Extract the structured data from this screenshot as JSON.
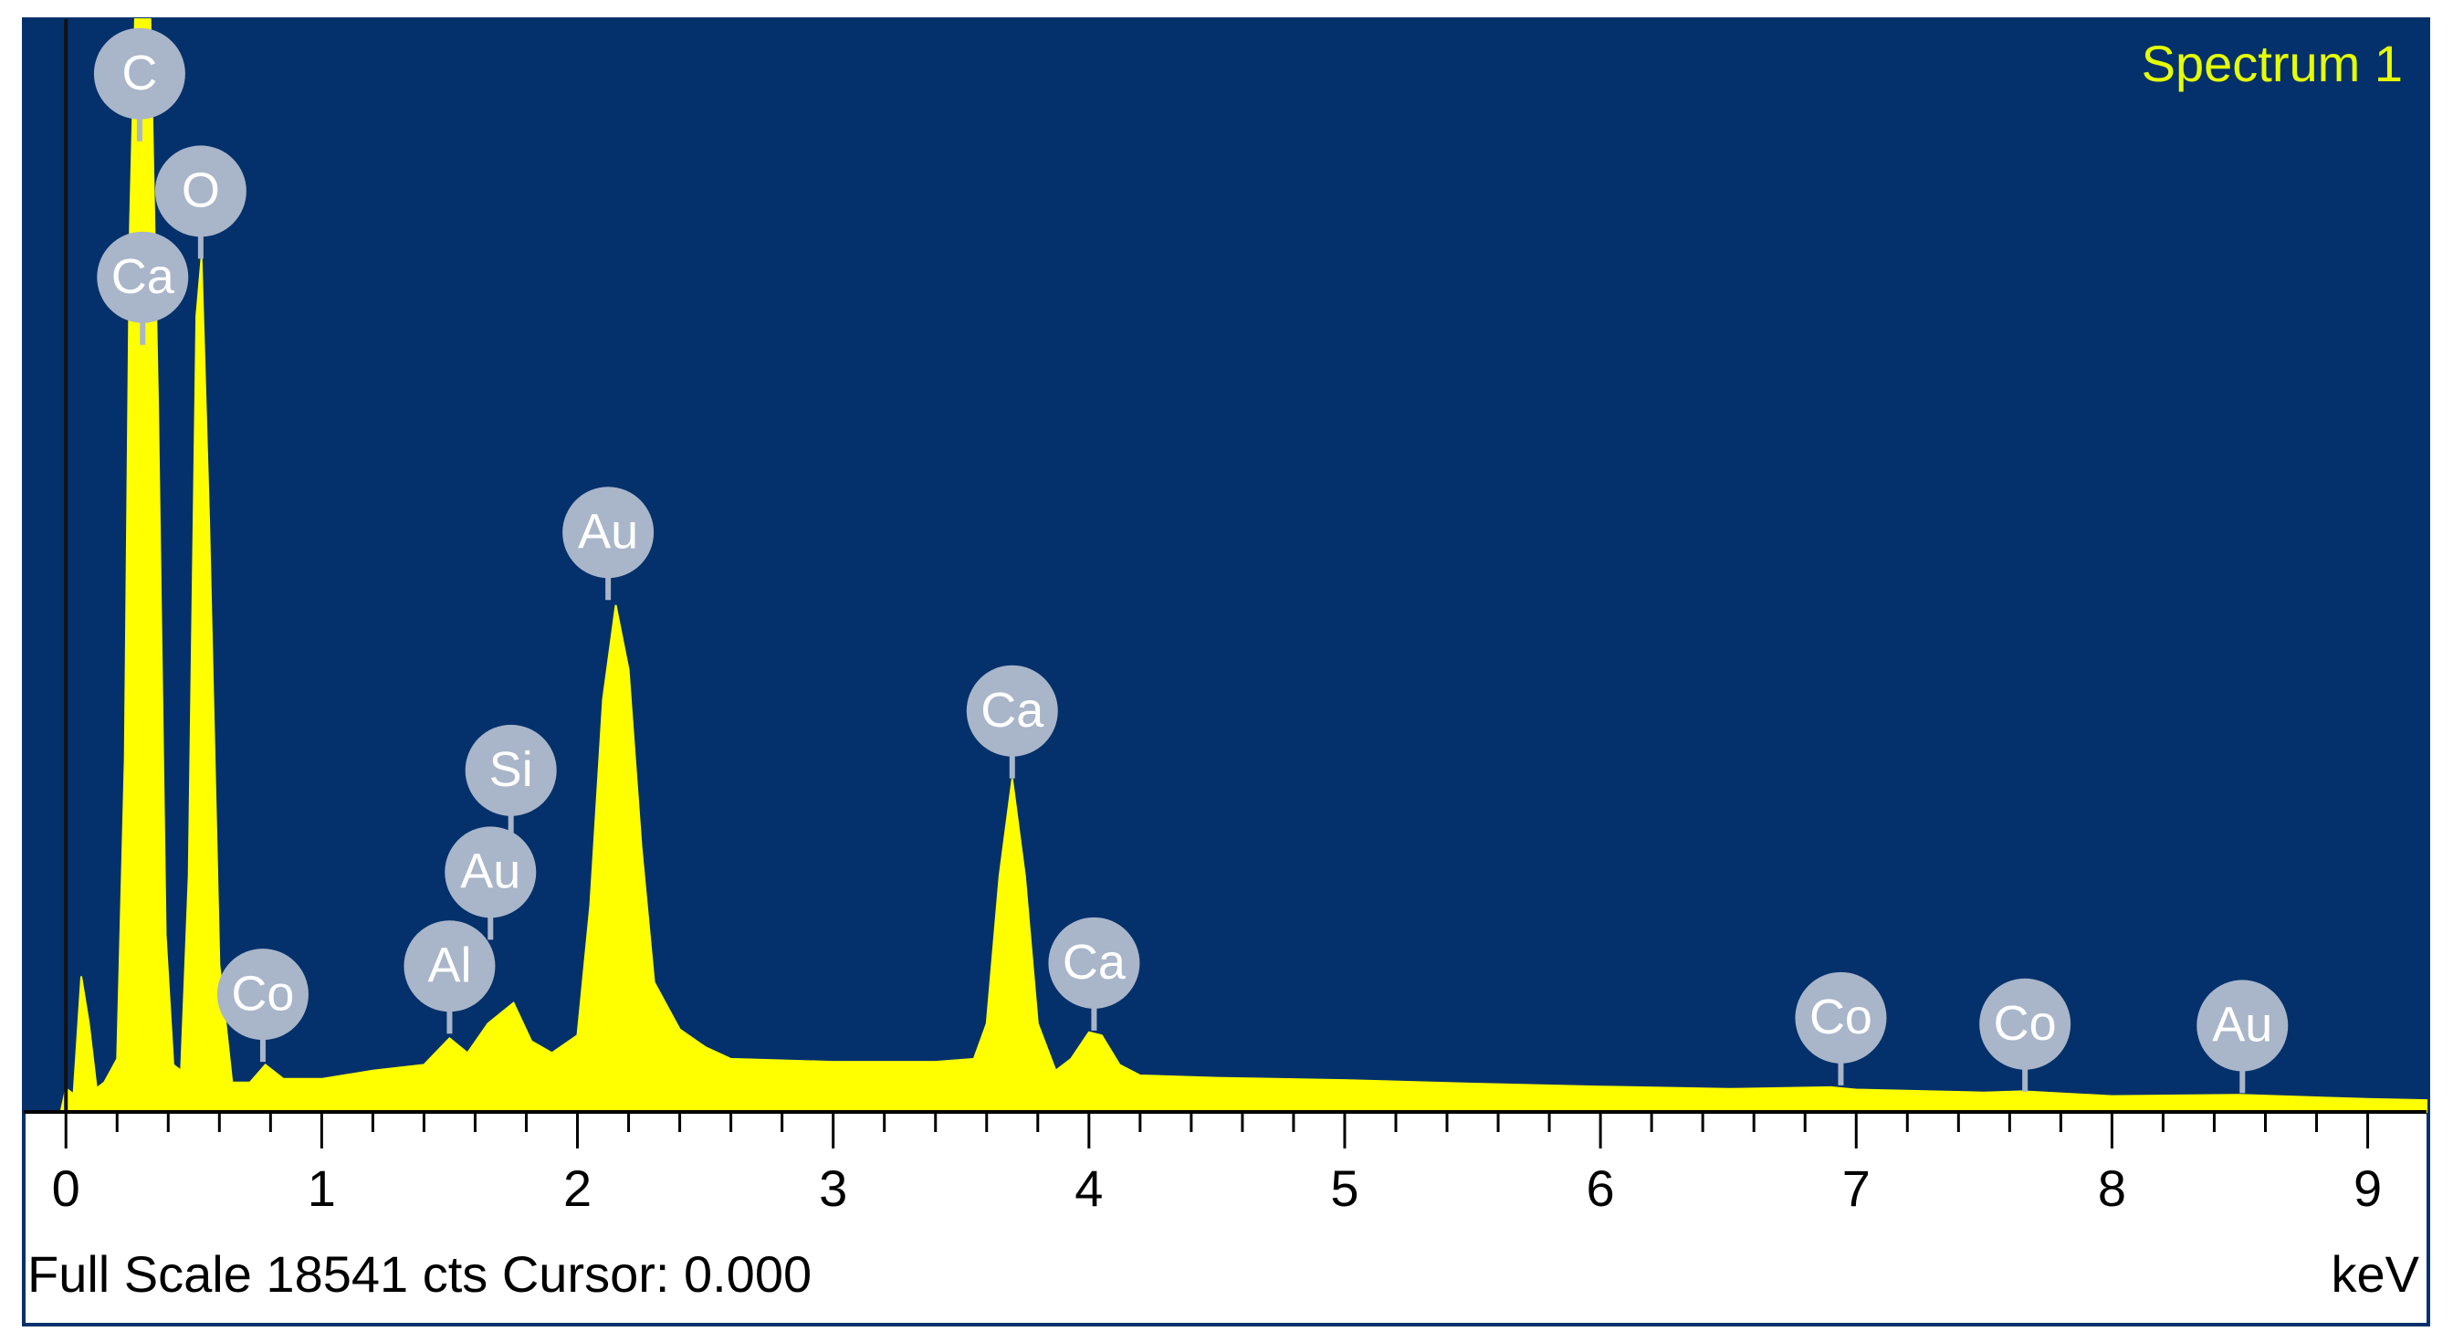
{
  "chart_data": {
    "type": "area",
    "title": "Spectrum 1",
    "x_label": "keV",
    "footer": "Full Scale 18541 cts Cursor: 0.000",
    "color": "#ffff00",
    "background": "#04316b",
    "x": [
      -0.02,
      0.0,
      0.03,
      0.06,
      0.09,
      0.12,
      0.15,
      0.2,
      0.23,
      0.25,
      0.27,
      0.33,
      0.36,
      0.39,
      0.42,
      0.45,
      0.48,
      0.51,
      0.53,
      0.56,
      0.6,
      0.65,
      0.72,
      0.78,
      0.85,
      1.0,
      1.2,
      1.4,
      1.5,
      1.57,
      1.65,
      1.75,
      1.82,
      1.9,
      2.0,
      2.05,
      2.1,
      2.15,
      2.2,
      2.25,
      2.3,
      2.4,
      2.5,
      2.6,
      3.0,
      3.4,
      3.55,
      3.6,
      3.65,
      3.7,
      3.75,
      3.8,
      3.87,
      3.93,
      4.0,
      4.05,
      4.12,
      4.2,
      4.5,
      5.0,
      5.5,
      6.0,
      6.5,
      6.9,
      7.0,
      7.5,
      7.65,
      8.0,
      8.5,
      9.0,
      9.23
    ],
    "values": [
      0,
      400,
      300,
      2300,
      1500,
      400,
      500,
      900,
      6000,
      15000,
      18541,
      18541,
      12000,
      3000,
      800,
      700,
      4000,
      13500,
      14500,
      10000,
      2500,
      500,
      500,
      800,
      560,
      560,
      700,
      800,
      1250,
      1000,
      1500,
      1850,
      1200,
      1000,
      1300,
      3500,
      7000,
      8600,
      7500,
      4500,
      2200,
      1400,
      1100,
      900,
      850,
      850,
      900,
      1500,
      4000,
      5650,
      4000,
      1500,
      700,
      900,
      1350,
      1300,
      800,
      620,
      580,
      540,
      480,
      430,
      390,
      420,
      380,
      330,
      350,
      270,
      290,
      220,
      200
    ],
    "xlim": [
      -0.165,
      9.23
    ],
    "ylim": [
      0,
      18541
    ],
    "xticks": [
      0,
      1,
      2,
      3,
      4,
      5,
      6,
      7,
      8,
      9
    ],
    "peak_labels": [
      {
        "label": "C",
        "x": 0.288,
        "y": 16470
      },
      {
        "label": "Ca",
        "x": 0.3,
        "y": 13016
      },
      {
        "label": "O",
        "x": 0.527,
        "y": 14477
      },
      {
        "label": "Co",
        "x": 0.77,
        "y": 850
      },
      {
        "label": "Al",
        "x": 1.5,
        "y": 1328
      },
      {
        "label": "Au",
        "x": 1.66,
        "y": 2922
      },
      {
        "label": "Si",
        "x": 1.74,
        "y": 4649
      },
      {
        "label": "Au",
        "x": 2.12,
        "y": 8686
      },
      {
        "label": "Ca",
        "x": 3.7,
        "y": 5658
      },
      {
        "label": "Ca",
        "x": 4.02,
        "y": 1381
      },
      {
        "label": "Co",
        "x": 6.94,
        "y": 452
      },
      {
        "label": "Co",
        "x": 7.66,
        "y": 345
      },
      {
        "label": "Au",
        "x": 8.51,
        "y": 319
      }
    ]
  }
}
